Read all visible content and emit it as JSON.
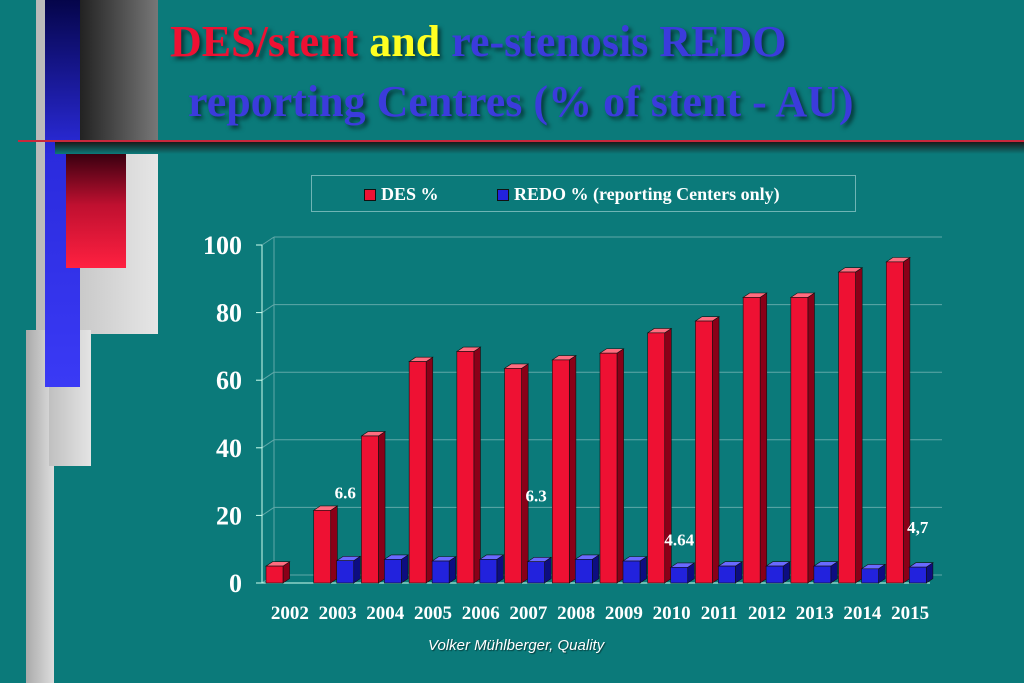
{
  "slide": {
    "title_line1": {
      "part1": "DES/stent",
      "part2": "and",
      "part3": "re-stenosis  REDO"
    },
    "title_line2": "reporting Centres (% of  stent - AU)",
    "footer": "Volker Mühlberger, Quality"
  },
  "colors": {
    "background": "#0b7a7a",
    "des": "#ee1133",
    "redo": "#2222dd",
    "title_red": "#ee1133",
    "title_yellow": "#ffff22",
    "title_blue": "#3b3bdc"
  },
  "chart_data": {
    "type": "bar",
    "categories": [
      "2002",
      "2003",
      "2004",
      "2005",
      "2006",
      "2007",
      "2008",
      "2009",
      "2010",
      "2011",
      "2012",
      "2013",
      "2014",
      "2015"
    ],
    "series": [
      {
        "name": "DES %",
        "values": [
          5,
          21.5,
          43.5,
          65.5,
          68.5,
          63.5,
          66,
          68,
          74,
          77.5,
          84.5,
          84.5,
          92,
          95
        ]
      },
      {
        "name": "REDO % (reporting Centers only)",
        "values": [
          null,
          6.6,
          7,
          6.5,
          7,
          6.3,
          7,
          6.5,
          4.64,
          5,
          5,
          5,
          4.2,
          4.7
        ]
      }
    ],
    "data_labels": [
      {
        "text": "6.6",
        "category": "2003"
      },
      {
        "text": "6.3",
        "category": "2007"
      },
      {
        "text": "4.64",
        "category": "2010"
      },
      {
        "text": "4,7",
        "category": "2015"
      }
    ],
    "yticks": [
      "0",
      "20",
      "40",
      "60",
      "80",
      "100"
    ],
    "ylim": [
      0,
      100
    ],
    "grid": true,
    "legend_position": "top",
    "style": "3d"
  }
}
